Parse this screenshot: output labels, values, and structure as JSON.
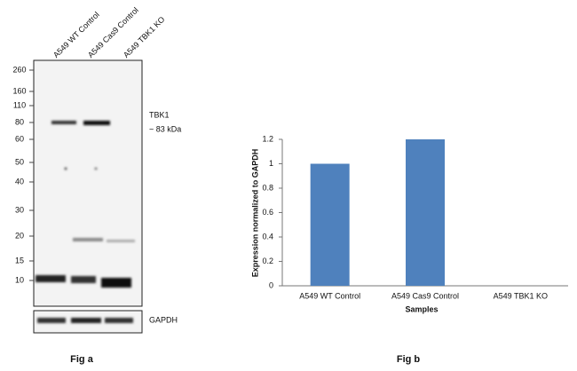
{
  "western_blot": {
    "lanes": [
      "A549 WT Control",
      "A549 Cas9 Control",
      "A549 TBK1 KO"
    ],
    "markers": [
      260,
      160,
      110,
      80,
      60,
      50,
      40,
      30,
      20,
      15,
      10
    ],
    "target_label": "TBK1",
    "target_size": "~ 83 kDa",
    "loading_control": "GAPDH",
    "caption": "Fig a"
  },
  "chart_data": {
    "type": "bar",
    "categories": [
      "A549 WT Control",
      "A549 Cas9 Control",
      "A549 TBK1 KO"
    ],
    "values": [
      1,
      1.2,
      0
    ],
    "color": "#4f81bd",
    "ylim": [
      0,
      1.2
    ],
    "yticks": [
      0,
      0.2,
      0.4,
      0.6,
      0.8,
      1,
      1.2
    ],
    "x_label": "Samples",
    "y_label": "Expression  normalized to GAPDH",
    "caption": "Fig b"
  }
}
